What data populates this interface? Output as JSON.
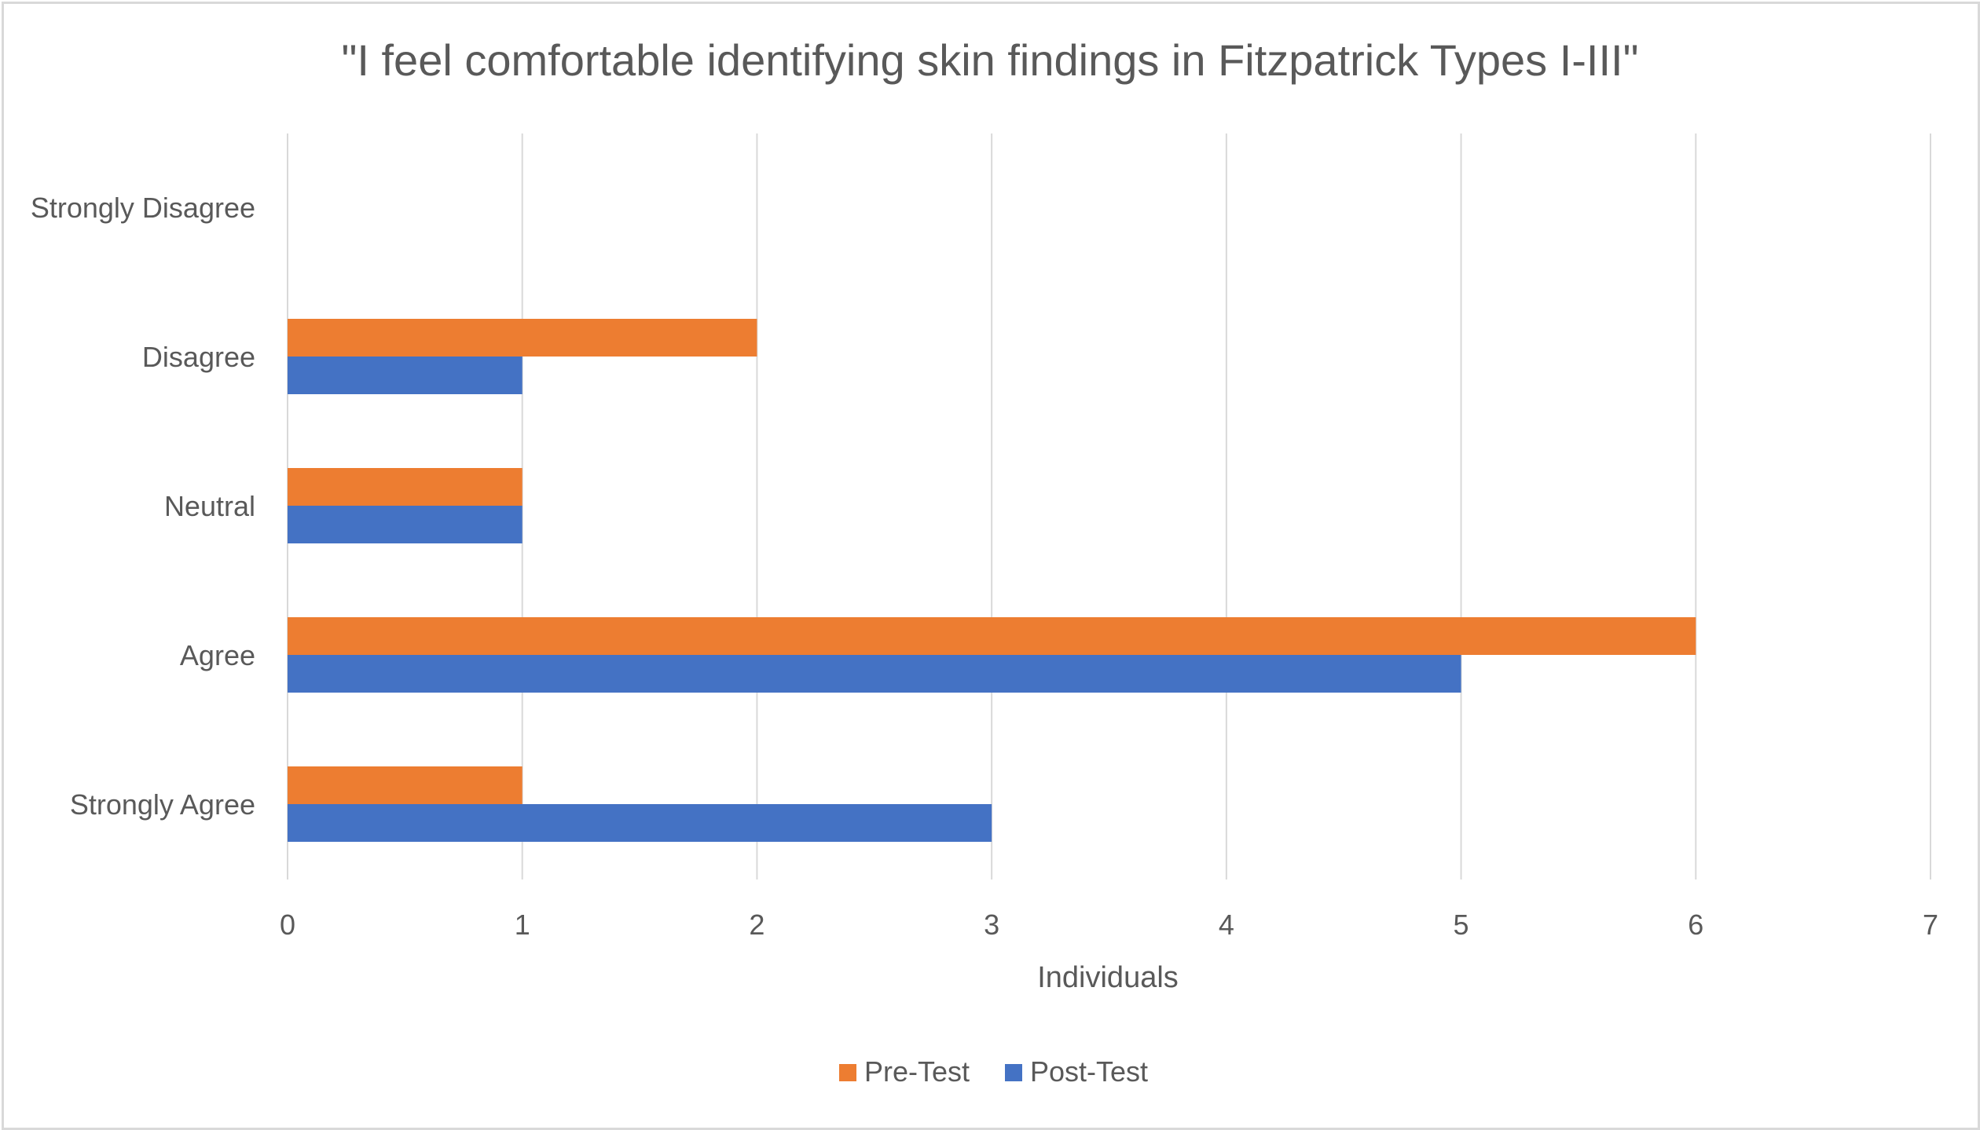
{
  "chart_data": {
    "type": "bar",
    "orientation": "horizontal",
    "title": "\"I feel comfortable identifying skin findings in Fitzpatrick Types I-III\"",
    "categories": [
      "Strongly Disagree",
      "Disagree",
      "Neutral",
      "Agree",
      "Strongly Agree"
    ],
    "series": [
      {
        "name": "Pre-Test",
        "color": "#ed7d31",
        "values": [
          0,
          2,
          1,
          6,
          1
        ]
      },
      {
        "name": "Post-Test",
        "color": "#4472c4",
        "values": [
          0,
          1,
          1,
          5,
          3
        ]
      }
    ],
    "xlabel": "Individuals",
    "ylabel": "",
    "xlim": [
      0,
      7
    ],
    "xticks": [
      "0",
      "1",
      "2",
      "3",
      "4",
      "5",
      "6",
      "7"
    ],
    "grid": "vertical",
    "legend_position": "bottom"
  },
  "colors": {
    "gridline": "#d9d9d9",
    "text": "#595959",
    "border": "#d9d9d9"
  }
}
